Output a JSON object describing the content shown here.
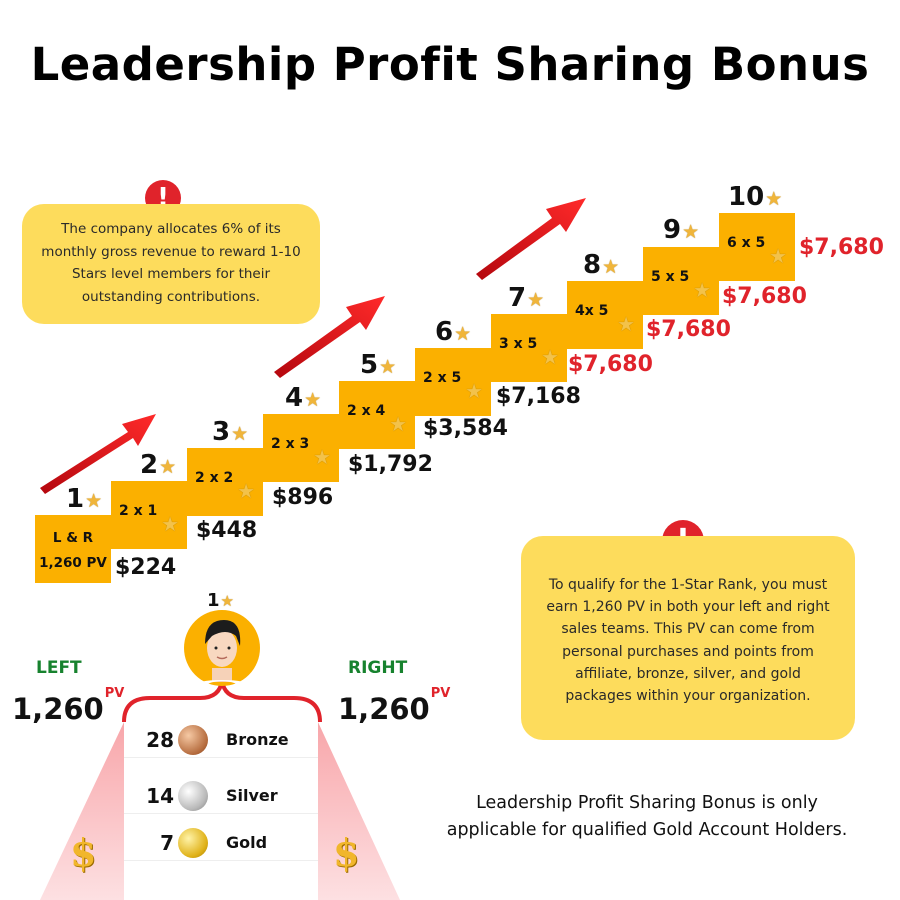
{
  "title": "Leadership Profit Sharing Bonus",
  "note_top": "The company allocates 6% of its monthly gross revenue to reward 1-10 Stars level members for their outstanding contributions.",
  "note_right": "To qualify for the 1-Star Rank, you must earn 1,260 PV in both your left and right sales teams. This PV can come from personal purchases and points from affiliate, bronze, silver, and gold packages within your organization.",
  "footer": "Leadership Profit Sharing Bonus is only applicable for qualified Gold Account Holders.",
  "alert_symbol": "!",
  "star_symbol": "★",
  "colors": {
    "step": "#fbb000",
    "note": "#fddc5c",
    "alert": "#e0232b",
    "accent_red": "#e0232b",
    "left_right": "#17822e"
  },
  "steps": [
    {
      "level": "1",
      "label": "L & R\n1,260 PV",
      "amount": "$224"
    },
    {
      "level": "2",
      "label": "2 x 1",
      "amount": "$448"
    },
    {
      "level": "3",
      "label": "2 x 2",
      "amount": "$896"
    },
    {
      "level": "4",
      "label": "2 x 3",
      "amount": "$1,792"
    },
    {
      "level": "5",
      "label": "2 x 4",
      "amount": "$3,584"
    },
    {
      "level": "6",
      "label": "2 x 5",
      "amount": "$7,168"
    },
    {
      "level": "7",
      "label": "3 x 5",
      "amount": "$7,680"
    },
    {
      "level": "8",
      "label": "4x 5",
      "amount": "$7,680"
    },
    {
      "level": "9",
      "label": "5 x 5",
      "amount": "$7,680"
    },
    {
      "level": "10",
      "label": "6 x 5",
      "amount": "$7,680"
    }
  ],
  "qualification": {
    "rank": "1",
    "left_label": "LEFT",
    "right_label": "RIGHT",
    "left_pv": "1,260",
    "right_pv": "1,260",
    "pv_unit": "PV",
    "currency_symbol": "$",
    "packages": [
      {
        "count": "28",
        "name": "Bronze",
        "coin": "bronze-coin-icon"
      },
      {
        "count": "14",
        "name": "Silver",
        "coin": "silver-coin-icon"
      },
      {
        "count": "7",
        "name": "Gold",
        "coin": "gold-coin-icon"
      }
    ]
  }
}
